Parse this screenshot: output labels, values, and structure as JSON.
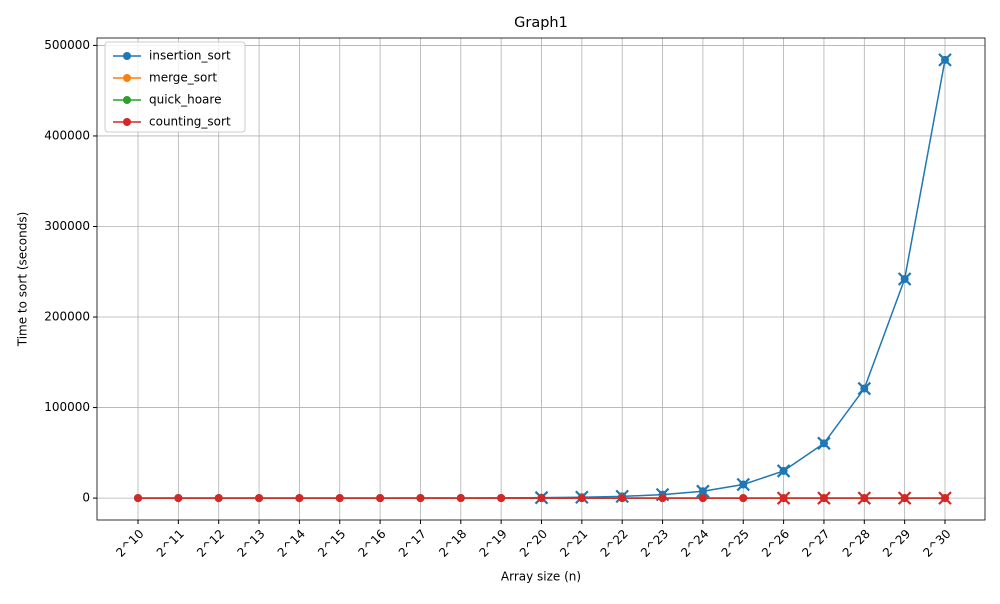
{
  "chart_data": {
    "type": "line",
    "title": "Graph1",
    "x_label": "Array size (n)",
    "y_label": "Time to sort (seconds)",
    "categories": [
      "2^10",
      "2^11",
      "2^12",
      "2^13",
      "2^14",
      "2^15",
      "2^16",
      "2^17",
      "2^18",
      "2^19",
      "2^20",
      "2^21",
      "2^22",
      "2^23",
      "2^24",
      "2^25",
      "2^26",
      "2^27",
      "2^28",
      "2^29",
      "2^30"
    ],
    "series": [
      {
        "name": "insertion_sort",
        "color": "#1f77b4",
        "cross_from": 10,
        "values": [
          0.5,
          1,
          2,
          4,
          7,
          15,
          29,
          59,
          118,
          235,
          470,
          950,
          1900,
          3800,
          7500,
          15000,
          30000,
          60500,
          121000,
          242000,
          484000
        ]
      },
      {
        "name": "merge_sort",
        "color": "#ff7f0e",
        "values": [
          0,
          0,
          0,
          0,
          0,
          0,
          0,
          0,
          0,
          0,
          0,
          0,
          0,
          0,
          0,
          0,
          0,
          0,
          0,
          0,
          0
        ]
      },
      {
        "name": "quick_hoare",
        "color": "#2ca02c",
        "values": [
          0,
          0,
          0,
          0,
          0,
          0,
          0,
          0,
          0,
          0,
          0,
          0,
          0,
          0,
          0,
          0,
          0,
          0,
          0,
          0,
          0
        ]
      },
      {
        "name": "counting_sort",
        "color": "#d62728",
        "cross_from": 16,
        "values": [
          0,
          0,
          0,
          0,
          0,
          0,
          0,
          0,
          0,
          0,
          0,
          0,
          0,
          0,
          0,
          0,
          0,
          0,
          0,
          0,
          0
        ]
      }
    ],
    "ylim": [
      -24200,
      508200
    ],
    "yticks": [
      0,
      100000,
      200000,
      300000,
      400000,
      500000
    ],
    "grid": true,
    "legend": "upper left"
  }
}
